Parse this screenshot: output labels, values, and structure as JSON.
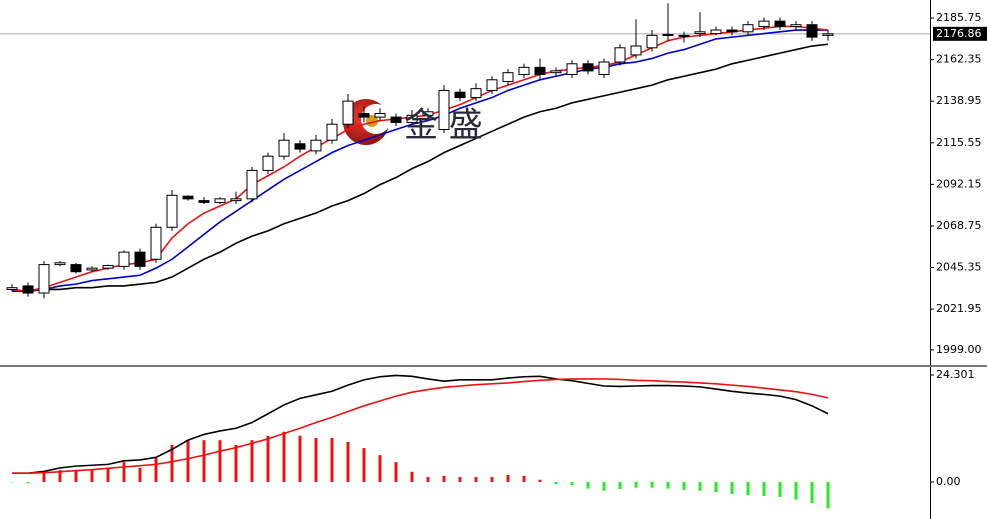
{
  "chart_data": [
    {
      "type": "candlestick",
      "watermark": "金 盛",
      "open": [
        2033,
        2035,
        2031,
        2047,
        2047,
        2044,
        2045,
        2046,
        2054,
        2050,
        2068,
        2085.5,
        2083,
        2082,
        2083,
        2084,
        2100,
        2108,
        2115,
        2111,
        2117,
        2126,
        2132,
        2130,
        2130,
        2127,
        2131,
        2123,
        2144,
        2141,
        2145,
        2150,
        2154,
        2158,
        2155,
        2154,
        2160,
        2154,
        2161,
        2165,
        2169,
        2176,
        2176,
        2177,
        2177,
        2179,
        2178,
        2181,
        2184,
        2181,
        2182,
        2176
      ],
      "high": [
        2036,
        2037,
        2049,
        2049,
        2048,
        2046,
        2047,
        2055,
        2056,
        2070,
        2089,
        2086,
        2085,
        2085,
        2088,
        2102,
        2110,
        2121,
        2117,
        2120,
        2129,
        2143,
        2136,
        2135,
        2132,
        2134,
        2135,
        2148,
        2146,
        2149,
        2153,
        2157,
        2160,
        2163,
        2158,
        2162,
        2162,
        2163,
        2171,
        2185,
        2179,
        2194,
        2178,
        2189,
        2181,
        2181,
        2184,
        2186,
        2186,
        2184,
        2184,
        2179
      ],
      "low": [
        2032,
        2029,
        2028,
        2046,
        2042,
        2043,
        2044,
        2044,
        2044,
        2048,
        2066,
        2083,
        2081,
        2081,
        2081,
        2082,
        2098,
        2106,
        2110,
        2109,
        2115,
        2124,
        2127,
        2128,
        2125,
        2126,
        2129,
        2121,
        2139,
        2139,
        2143,
        2148,
        2152,
        2151,
        2153,
        2152,
        2154,
        2152,
        2159,
        2163,
        2167,
        2173,
        2172,
        2175,
        2176,
        2176,
        2176,
        2179,
        2179,
        2179,
        2173,
        2173
      ],
      "close": [
        2034,
        2031,
        2047,
        2048,
        2043,
        2045,
        2046.5,
        2054,
        2046,
        2068,
        2086,
        2084,
        2082,
        2084,
        2084,
        2100,
        2108,
        2117,
        2112,
        2117,
        2126,
        2139,
        2130,
        2132,
        2127,
        2131,
        2133,
        2145,
        2141,
        2146,
        2151,
        2155,
        2158,
        2154,
        2156,
        2160,
        2156,
        2161,
        2169,
        2170,
        2176,
        2176.5,
        2175.5,
        2178,
        2179,
        2178,
        2182,
        2184,
        2181,
        2182,
        2175,
        2176.86
      ],
      "up_color": "#ffffff",
      "down_color": "#000000",
      "series": [
        {
          "color": "#000000",
          "values": [
            2032,
            2032,
            2033,
            2033,
            2034,
            2034,
            2035,
            2035,
            2036,
            2037,
            2040,
            2045,
            2050,
            2054,
            2059,
            2063,
            2066,
            2070,
            2073,
            2076,
            2080,
            2083,
            2087,
            2092,
            2096,
            2101,
            2105,
            2110,
            2114,
            2118,
            2122,
            2126,
            2130,
            2133,
            2135,
            2138,
            2140,
            2142,
            2144,
            2146,
            2148,
            2151,
            2153,
            2155,
            2157,
            2160,
            2162,
            2164,
            2166,
            2168,
            2170,
            2171
          ]
        },
        {
          "color": "#0000cc",
          "values": [
            2032,
            2032,
            2033,
            2035,
            2036,
            2038,
            2039,
            2040,
            2041,
            2045,
            2050,
            2057,
            2064,
            2071,
            2077,
            2083,
            2089,
            2095,
            2100,
            2105,
            2110,
            2114,
            2117,
            2120,
            2123,
            2126,
            2128,
            2131,
            2135,
            2138,
            2141,
            2145,
            2148,
            2151,
            2153,
            2155,
            2157,
            2158,
            2160,
            2161,
            2163,
            2166,
            2168,
            2171,
            2174,
            2175,
            2176,
            2177,
            2178,
            2179,
            2179,
            2179
          ]
        },
        {
          "color": "#ee1111",
          "values": [
            2033,
            2032,
            2034,
            2037,
            2040,
            2043,
            2045,
            2047,
            2048,
            2050,
            2062,
            2070,
            2076,
            2080,
            2084,
            2092,
            2097,
            2102,
            2108,
            2113,
            2118,
            2123,
            2126,
            2128,
            2129,
            2130,
            2131,
            2134,
            2137,
            2141,
            2145,
            2148,
            2151,
            2154,
            2156,
            2157,
            2158,
            2159,
            2161,
            2165,
            2169,
            2173,
            2175,
            2176,
            2177,
            2178,
            2179,
            2180,
            2181,
            2181,
            2180,
            2179
          ]
        }
      ],
      "current_price": 2176.86,
      "ylim": [
        1990.5,
        2195.9
      ],
      "yticks": [
        2185.75,
        2162.35,
        2138.95,
        2115.55,
        2092.15,
        2068.75,
        2045.35,
        2021.95,
        {
          "value": 1999,
          "label": "1999.00"
        }
      ]
    },
    {
      "type": "macd",
      "histogram": [
        -0.1,
        -0.3,
        2.3,
        2.7,
        2.7,
        2.7,
        3.2,
        4.5,
        3.2,
        5.5,
        8.4,
        9.5,
        9.5,
        9.5,
        8.4,
        9.5,
        10.5,
        11.4,
        10.5,
        10,
        10,
        9.1,
        7.7,
        6.1,
        4.5,
        2.3,
        1.1,
        1.4,
        1.1,
        1.1,
        1.1,
        1.6,
        1.4,
        0.5,
        -0.5,
        -0.7,
        -1.5,
        -2,
        -1.6,
        -1.3,
        -1.3,
        -1.5,
        -1.8,
        -2,
        -2.3,
        -2.7,
        -3,
        -3.2,
        -3.4,
        -4,
        -4.8,
        -6
      ],
      "positive_color": "#ee1111",
      "negative_color": "#22ee22",
      "series": [
        {
          "color": "#000000",
          "values": [
            2.0,
            2.0,
            2.4,
            3.2,
            3.6,
            3.8,
            4.0,
            4.8,
            5.0,
            5.6,
            7.4,
            9.5,
            10.8,
            11.6,
            12.2,
            13.5,
            15.5,
            17.5,
            19.0,
            19.8,
            20.6,
            22.0,
            23.2,
            23.9,
            24.2,
            24.0,
            23.4,
            22.9,
            23.2,
            23.2,
            23.2,
            23.6,
            23.9,
            24.0,
            23.4,
            23.0,
            22.4,
            21.8,
            21.7,
            21.8,
            21.9,
            21.9,
            21.8,
            21.6,
            21.1,
            20.6,
            20.2,
            19.9,
            19.5,
            18.7,
            17.3,
            15.5
          ]
        },
        {
          "color": "#ee1111",
          "values": [
            2.0,
            2.0,
            2.1,
            2.3,
            2.6,
            2.8,
            3.1,
            3.4,
            3.7,
            4.0,
            4.6,
            5.3,
            6.1,
            7.0,
            7.8,
            8.8,
            9.8,
            11.0,
            12.2,
            13.5,
            14.7,
            16.0,
            17.3,
            18.4,
            19.5,
            20.4,
            21.0,
            21.5,
            21.8,
            22.1,
            22.3,
            22.5,
            22.8,
            23.1,
            23.3,
            23.4,
            23.4,
            23.4,
            23.3,
            23.1,
            23.0,
            22.8,
            22.7,
            22.5,
            22.3,
            22.0,
            21.7,
            21.3,
            20.9,
            20.5,
            19.9,
            19.1
          ]
        }
      ],
      "ylim": [
        -8.41,
        25.89
      ],
      "yticks": [
        24.301,
        {
          "value": 0,
          "label": "0.00"
        }
      ]
    }
  ]
}
